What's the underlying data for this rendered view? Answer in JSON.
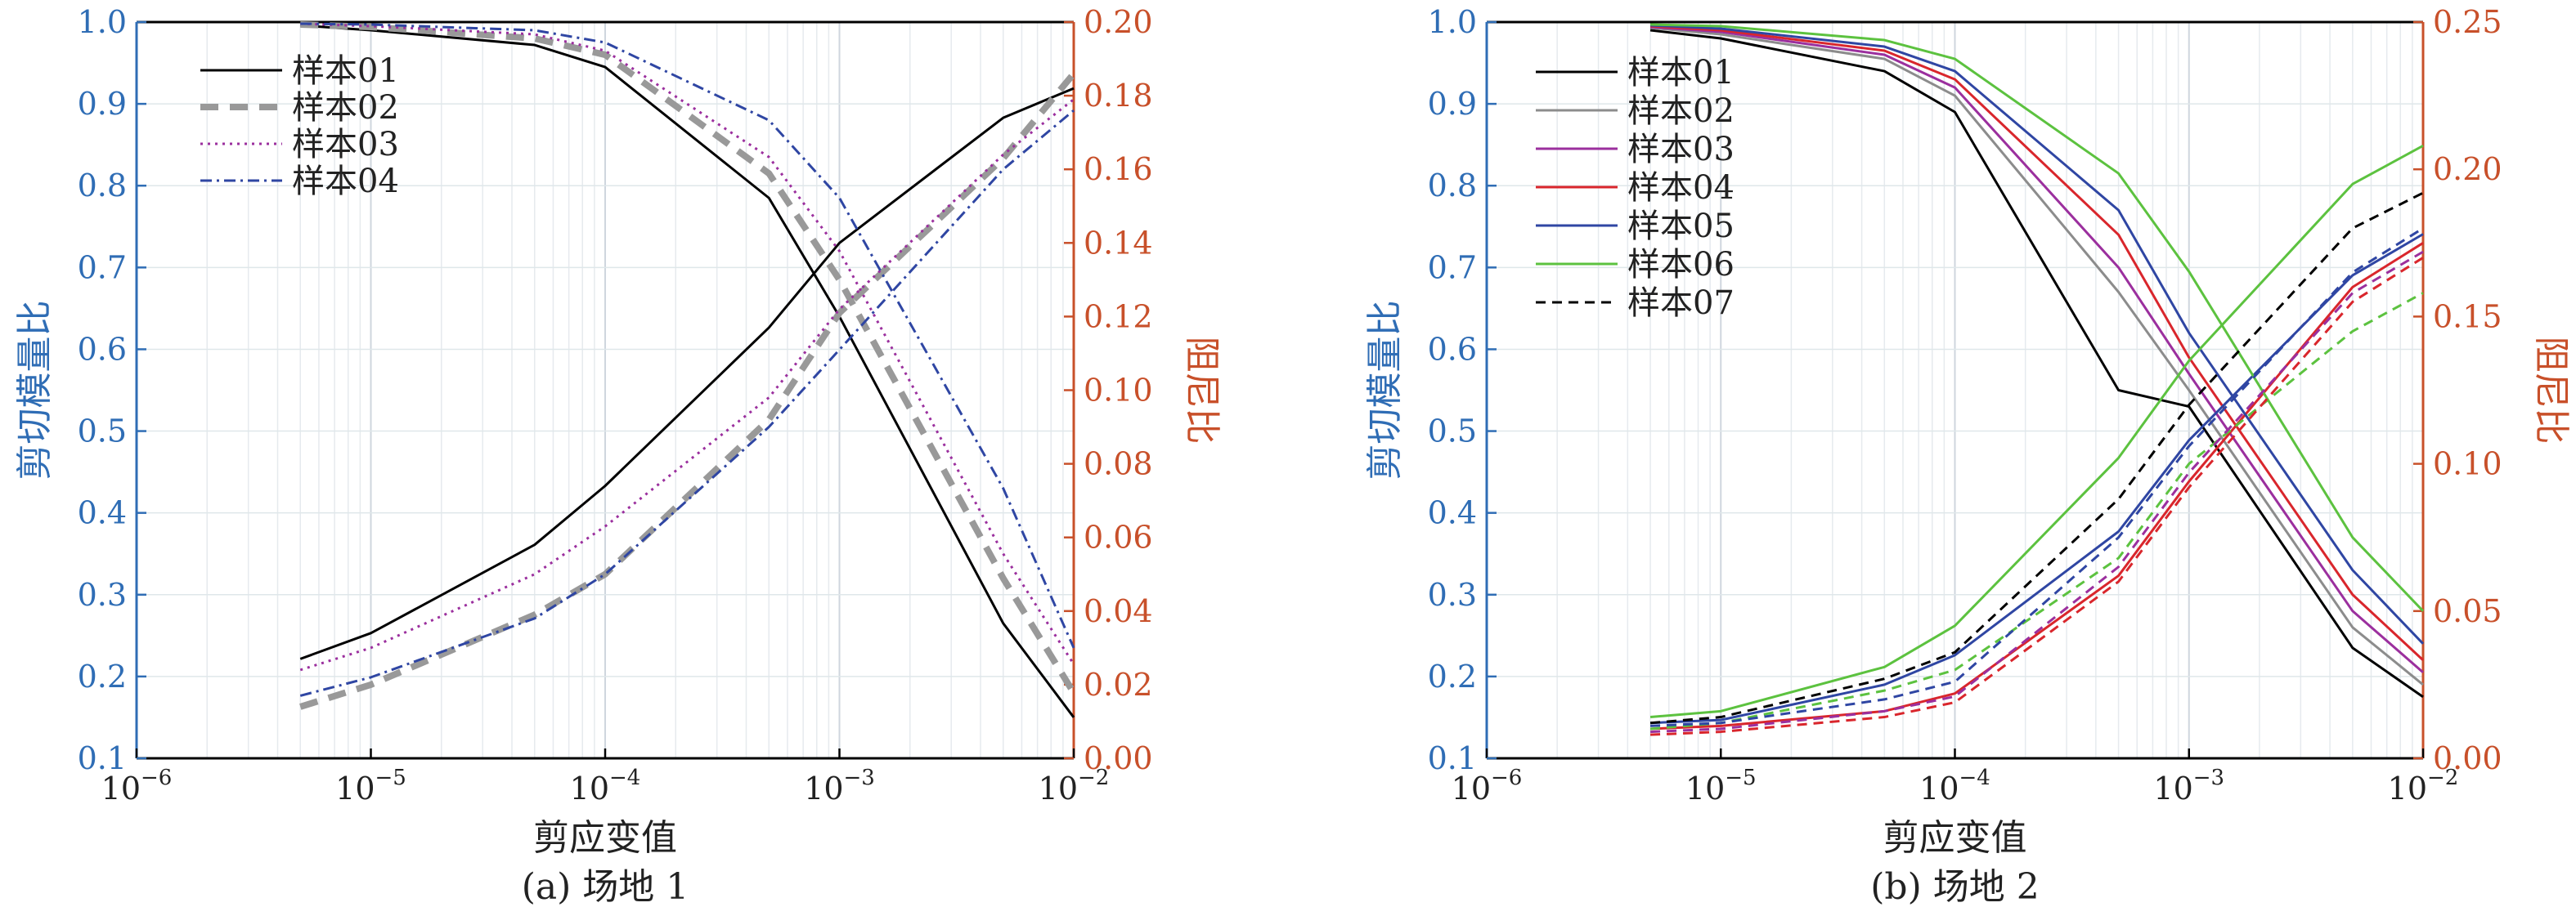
{
  "chart_data": [
    {
      "type": "line",
      "caption": "(a) 场地 1",
      "xlabel": "剪应变值",
      "ylabel": "剪切模量比",
      "ylabel_right": "阻尼比",
      "x_scale": "log",
      "xlim": [
        1e-06,
        0.01
      ],
      "ylim": [
        0.1,
        1.0
      ],
      "ylim_right": [
        0.0,
        0.2
      ],
      "x_ticks": [
        {
          "value": 1e-06,
          "label": "10",
          "exp": "−6"
        },
        {
          "value": 1e-05,
          "label": "10",
          "exp": "−5"
        },
        {
          "value": 0.0001,
          "label": "10",
          "exp": "−4"
        },
        {
          "value": 0.001,
          "label": "10",
          "exp": "−3"
        },
        {
          "value": 0.01,
          "label": "10",
          "exp": "−2"
        }
      ],
      "y_ticks": [
        "0.1",
        "0.2",
        "0.3",
        "0.4",
        "0.5",
        "0.6",
        "0.7",
        "0.8",
        "0.9",
        "1.0"
      ],
      "y_ticks_right": [
        "0.00",
        "0.02",
        "0.04",
        "0.06",
        "0.08",
        "0.10",
        "0.12",
        "0.14",
        "0.16",
        "0.18",
        "0.20"
      ],
      "y_tick_values_right": [
        0,
        0.02,
        0.04,
        0.06,
        0.08,
        0.1,
        0.12,
        0.14,
        0.16,
        0.18,
        0.2
      ],
      "legend": [
        "样本01",
        "样本02",
        "样本03",
        "样本04"
      ],
      "legend_position": "top-left",
      "grid": true,
      "x": [
        5e-06,
        1e-05,
        5e-05,
        0.0001,
        0.0005,
        0.001,
        0.005,
        0.01
      ],
      "series": [
        {
          "name": "样本01",
          "color": "#000000",
          "dash": "",
          "width": 3,
          "modulus": [
            0.996,
            0.99,
            0.972,
            0.945,
            0.785,
            0.64,
            0.265,
            0.15
          ],
          "damping": [
            0.027,
            0.034,
            0.058,
            0.074,
            0.117,
            0.14,
            0.174,
            0.182
          ]
        },
        {
          "name": "样本02",
          "color": "#999999",
          "dash": "22 14",
          "width": 8,
          "modulus": [
            0.997,
            0.994,
            0.98,
            0.96,
            0.815,
            0.685,
            0.32,
            0.18
          ],
          "damping": [
            0.014,
            0.02,
            0.039,
            0.05,
            0.092,
            0.121,
            0.163,
            0.186
          ]
        },
        {
          "name": "样本03",
          "color": "#9b2f9e",
          "dash": "3 6",
          "width": 3,
          "modulus": [
            0.998,
            0.995,
            0.985,
            0.965,
            0.835,
            0.72,
            0.35,
            0.215
          ],
          "damping": [
            0.024,
            0.03,
            0.05,
            0.063,
            0.098,
            0.122,
            0.164,
            0.179
          ]
        },
        {
          "name": "样本04",
          "color": "#2f46a3",
          "dash": "14 6 3 6",
          "width": 3,
          "modulus": [
            0.998,
            0.997,
            0.99,
            0.975,
            0.88,
            0.785,
            0.43,
            0.235
          ],
          "damping": [
            0.017,
            0.022,
            0.038,
            0.05,
            0.09,
            0.111,
            0.16,
            0.176
          ]
        }
      ]
    },
    {
      "type": "line",
      "caption": "(b) 场地 2",
      "xlabel": "剪应变值",
      "ylabel": "剪切模量比",
      "ylabel_right": "阻尼比",
      "x_scale": "log",
      "xlim": [
        1e-06,
        0.01
      ],
      "ylim": [
        0.1,
        1.0
      ],
      "ylim_right": [
        0.0,
        0.25
      ],
      "x_ticks": [
        {
          "value": 1e-06,
          "label": "10",
          "exp": "−6"
        },
        {
          "value": 1e-05,
          "label": "10",
          "exp": "−5"
        },
        {
          "value": 0.0001,
          "label": "10",
          "exp": "−4"
        },
        {
          "value": 0.001,
          "label": "10",
          "exp": "−3"
        },
        {
          "value": 0.01,
          "label": "10",
          "exp": "−2"
        }
      ],
      "y_ticks": [
        "0.1",
        "0.2",
        "0.3",
        "0.4",
        "0.5",
        "0.6",
        "0.7",
        "0.8",
        "0.9",
        "1.0"
      ],
      "y_ticks_right": [
        "0.00",
        "0.05",
        "0.10",
        "0.15",
        "0.20",
        "0.25"
      ],
      "y_tick_values_right": [
        0,
        0.05,
        0.1,
        0.15,
        0.2,
        0.25
      ],
      "legend": [
        "样本01",
        "样本02",
        "样本03",
        "样本04",
        "样本05",
        "样本06",
        "样本07"
      ],
      "legend_position": "top-left",
      "grid": true,
      "x": [
        5e-06,
        1e-05,
        5e-05,
        0.0001,
        0.0005,
        0.001,
        0.005,
        0.01
      ],
      "series": [
        {
          "name": "样本01",
          "color": "#000000",
          "dash": "",
          "width": 3,
          "modulus": [
            0.99,
            0.98,
            0.94,
            0.89,
            0.55,
            0.53,
            0.235,
            0.175
          ],
          "damping": null
        },
        {
          "name": "样本02",
          "color": "#8c8c8c",
          "dash": "",
          "width": 3,
          "modulus": [
            0.993,
            0.985,
            0.955,
            0.91,
            0.67,
            0.55,
            0.26,
            0.19
          ],
          "damping": null
        },
        {
          "name": "样本03",
          "color": "#9b2f9e",
          "dash": "",
          "width": 3,
          "modulus": [
            0.994,
            0.988,
            0.96,
            0.92,
            0.7,
            0.57,
            0.28,
            0.205
          ],
          "damping": null
        },
        {
          "name": "样本04",
          "color": "#d9262c",
          "dash": "",
          "width": 3,
          "modulus": [
            0.995,
            0.99,
            0.965,
            0.93,
            0.74,
            0.59,
            0.3,
            0.22
          ],
          "damping": [
            0.01,
            0.011,
            0.016,
            0.022,
            0.062,
            0.094,
            0.16,
            0.175
          ]
        },
        {
          "name": "样本05",
          "color": "#2f46a3",
          "dash": "",
          "width": 3,
          "modulus": [
            0.996,
            0.992,
            0.97,
            0.94,
            0.77,
            0.62,
            0.33,
            0.24
          ],
          "damping": [
            0.012,
            0.013,
            0.025,
            0.035,
            0.077,
            0.108,
            0.164,
            0.178
          ]
        },
        {
          "name": "样本06",
          "color": "#5cc23f",
          "dash": "",
          "width": 3,
          "modulus": [
            0.997,
            0.995,
            0.978,
            0.955,
            0.815,
            0.695,
            0.37,
            0.28
          ],
          "damping": [
            0.014,
            0.016,
            0.031,
            0.045,
            0.102,
            0.135,
            0.195,
            0.208
          ]
        },
        {
          "name": "样本07",
          "color": "#000000",
          "dash": "12 8",
          "width": 3,
          "modulus": null,
          "damping": [
            0.012,
            0.014,
            0.027,
            0.036,
            0.088,
            0.12,
            0.18,
            0.192
          ]
        },
        {
          "name": "",
          "color": "#5cc23f",
          "dash": "12 8",
          "width": 3,
          "modulus": null,
          "damping": [
            0.01,
            0.012,
            0.023,
            0.03,
            0.068,
            0.1,
            0.145,
            0.158
          ]
        },
        {
          "name": "",
          "color": "#9b2f9e",
          "dash": "12 8",
          "width": 3,
          "modulus": null,
          "damping": [
            0.009,
            0.01,
            0.016,
            0.021,
            0.065,
            0.097,
            0.158,
            0.172
          ]
        },
        {
          "name": "",
          "color": "#d9262c",
          "dash": "12 8",
          "width": 3,
          "modulus": null,
          "damping": [
            0.008,
            0.009,
            0.014,
            0.019,
            0.06,
            0.092,
            0.155,
            0.17
          ]
        },
        {
          "name": "",
          "color": "#2f46a3",
          "dash": "12 8",
          "width": 3,
          "modulus": null,
          "damping": [
            0.011,
            0.012,
            0.02,
            0.026,
            0.075,
            0.106,
            0.165,
            0.18
          ]
        }
      ]
    }
  ]
}
